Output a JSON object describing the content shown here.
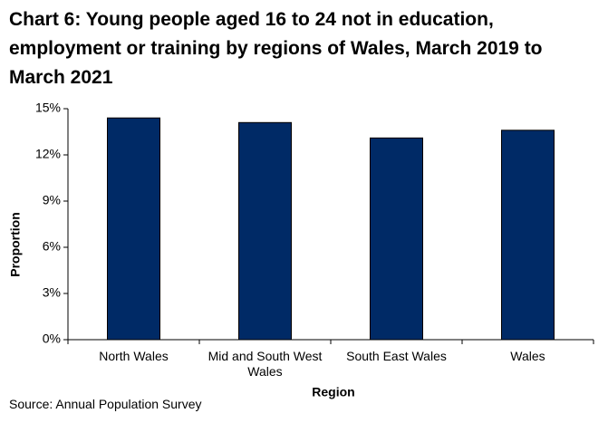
{
  "chart_data": {
    "type": "bar",
    "title": "Chart 6: Young people aged 16 to 24 not in education, employment or training by regions of Wales, March 2019 to March 2021",
    "x_label": "Region",
    "y_label": "Proportion",
    "categories": [
      "North Wales",
      "Mid and South West Wales",
      "South East Wales",
      "Wales"
    ],
    "values": [
      14.4,
      14.1,
      13.1,
      13.6
    ],
    "color": "#002a66",
    "ylim": [
      0,
      15
    ],
    "yticks": [
      {
        "value": 0,
        "label": "0%"
      },
      {
        "value": 3,
        "label": "3%"
      },
      {
        "value": 6,
        "label": "6%"
      },
      {
        "value": 9,
        "label": "9%"
      },
      {
        "value": 12,
        "label": "12%"
      },
      {
        "value": 15,
        "label": "15%"
      }
    ],
    "source": "Source: Annual Population Survey"
  }
}
